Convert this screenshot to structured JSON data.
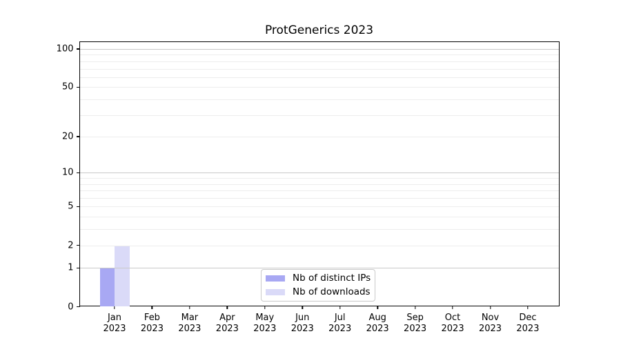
{
  "chart_data": {
    "type": "bar",
    "title": "ProtGenerics 2023",
    "year": "2023",
    "months": [
      "Jan",
      "Feb",
      "Mar",
      "Apr",
      "May",
      "Jun",
      "Jul",
      "Aug",
      "Sep",
      "Oct",
      "Nov",
      "Dec"
    ],
    "categories": [
      "Jan 2023",
      "Feb 2023",
      "Mar 2023",
      "Apr 2023",
      "May 2023",
      "Jun 2023",
      "Jul 2023",
      "Aug 2023",
      "Sep 2023",
      "Oct 2023",
      "Nov 2023",
      "Dec 2023"
    ],
    "series": [
      {
        "name": "Nb of distinct IPs",
        "color": "#a8a8f3",
        "values": [
          1,
          0,
          0,
          0,
          0,
          0,
          0,
          0,
          0,
          0,
          0,
          0
        ]
      },
      {
        "name": "Nb of downloads",
        "color": "#dadaf8",
        "values": [
          2,
          0,
          0,
          0,
          0,
          0,
          0,
          0,
          0,
          0,
          0,
          0
        ]
      }
    ],
    "xlabel": "",
    "ylabel": "",
    "yscale": "log1p",
    "ylim": [
      0,
      113
    ],
    "yticks": [
      0,
      1,
      2,
      5,
      10,
      20,
      50,
      100
    ],
    "grid_major": [
      1,
      10,
      100
    ],
    "grid_minor": [
      2,
      3,
      4,
      5,
      6,
      7,
      8,
      9,
      20,
      30,
      40,
      50,
      60,
      70,
      80,
      90
    ],
    "grid": "on",
    "legend_position": "lower center",
    "colors": {
      "background": "#ffffff",
      "spine": "#000000",
      "grid_major": "#c8c8c8",
      "grid_minor": "#ededed",
      "text": "#000000",
      "legend_border": "#c9c9c9"
    }
  }
}
